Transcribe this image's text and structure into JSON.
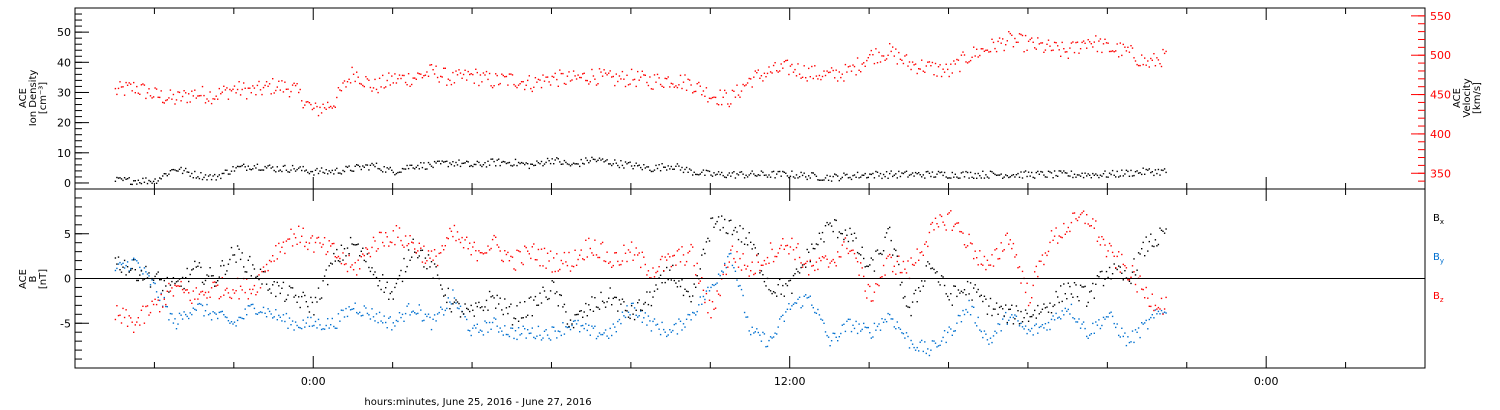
{
  "chart_data": [
    {
      "type": "scatter",
      "panel": "top",
      "ylabel_left": [
        "ACE",
        "Ion Density",
        "[cm⁻³]"
      ],
      "ylabel_right": [
        "ACE",
        "Velocity",
        "[km/s]"
      ],
      "ylim_left": [
        -2,
        58
      ],
      "left_ticks": [
        "0",
        "10",
        "20",
        "30",
        "40",
        "50"
      ],
      "ylim_right": [
        330,
        560
      ],
      "right_ticks": [
        "350",
        "400",
        "450",
        "500",
        "550"
      ],
      "series": [
        {
          "color": "#000000",
          "axis": "left",
          "x": [
            -5,
            -4,
            -3.5,
            -3,
            -2.5,
            -2,
            -1.5,
            -1,
            -0.5,
            0,
            0.5,
            1,
            1.5,
            2,
            2.5,
            3,
            3.5,
            4,
            4.5,
            5,
            5.5,
            6,
            6.5,
            7,
            7.5,
            8,
            8.5,
            9,
            9.5,
            10,
            11,
            12,
            13,
            14,
            15,
            16,
            17,
            18,
            19,
            20,
            21,
            21.5
          ],
          "y": [
            1,
            1,
            5,
            3,
            2,
            5,
            6,
            5,
            5,
            4,
            4,
            5,
            6,
            4,
            6,
            6,
            7,
            6,
            7,
            7,
            6,
            8,
            6,
            8,
            7,
            6,
            5,
            6,
            4,
            3,
            3,
            3,
            2,
            3,
            3,
            3,
            3,
            3,
            3,
            3,
            4,
            4
          ]
        },
        {
          "color": "#ff0000",
          "axis": "right",
          "x": [
            -5,
            -4.5,
            -4,
            -3.5,
            -3,
            -2.5,
            -2,
            -1.5,
            -1,
            -0.5,
            0,
            0.5,
            1,
            1.5,
            2,
            2.5,
            3,
            3.5,
            4,
            4.5,
            5,
            5.5,
            6,
            6.5,
            7,
            7.5,
            8,
            8.5,
            9,
            9.5,
            10,
            10.5,
            11,
            11.5,
            12,
            12.5,
            13,
            13.5,
            14,
            14.5,
            15,
            15.5,
            16,
            16.5,
            17,
            17.5,
            18,
            18.5,
            19,
            19.5,
            20,
            20.5,
            21,
            21.5
          ],
          "y": [
            455,
            460,
            450,
            445,
            452,
            450,
            458,
            455,
            462,
            458,
            430,
            440,
            480,
            460,
            470,
            472,
            480,
            470,
            475,
            468,
            470,
            465,
            472,
            470,
            475,
            470,
            472,
            468,
            470,
            465,
            450,
            445,
            470,
            480,
            485,
            478,
            475,
            480,
            500,
            505,
            490,
            485,
            480,
            500,
            510,
            520,
            515,
            510,
            505,
            520,
            510,
            505,
            490,
            500
          ]
        }
      ]
    },
    {
      "type": "scatter",
      "panel": "bottom",
      "ylabel": [
        "ACE",
        "B",
        "[nT]"
      ],
      "ylim": [
        -10,
        10
      ],
      "ticks": [
        "-5",
        "0",
        "5"
      ],
      "series": [
        {
          "name": "Bx",
          "color": "#000000",
          "x": [
            -5,
            -4.5,
            -4,
            -3.5,
            -3,
            -2.5,
            -2,
            -1.5,
            -1,
            -0.5,
            0,
            0.5,
            1,
            1.5,
            2,
            2.5,
            3,
            3.5,
            4,
            4.5,
            5,
            5.5,
            6,
            6.5,
            7,
            7.5,
            8,
            8.5,
            9,
            9.5,
            10,
            10.5,
            11,
            11.5,
            12,
            12.5,
            13,
            13.5,
            14,
            14.5,
            15,
            15.5,
            16,
            16.5,
            17,
            17.5,
            18,
            18.5,
            19,
            19.5,
            20,
            20.5,
            21,
            21.5
          ],
          "y": [
            2,
            1,
            0,
            -1,
            1,
            0,
            3,
            1,
            -1,
            -2,
            -3,
            2,
            4,
            1,
            -2,
            4,
            1,
            -3,
            -4,
            -2,
            -4,
            -3,
            -1,
            -5,
            -3,
            -2,
            -4,
            -2,
            1,
            -3,
            6,
            6,
            4,
            -1,
            -1,
            3,
            6,
            5,
            1,
            5,
            -4,
            2,
            -2,
            -1,
            -3,
            -4,
            -4,
            -3,
            -1,
            -2,
            1,
            0,
            4,
            5
          ]
        },
        {
          "name": "By",
          "color": "#0070d0",
          "x": [
            -5,
            -4.5,
            -4,
            -3.5,
            -3,
            -2.5,
            -2,
            -1.5,
            -1,
            -0.5,
            0,
            0.5,
            1,
            1.5,
            2,
            2.5,
            3,
            3.5,
            4,
            4.5,
            5,
            5.5,
            6,
            6.5,
            7,
            7.5,
            8,
            8.5,
            9,
            9.5,
            10,
            10.5,
            11,
            11.5,
            12,
            12.5,
            13,
            13.5,
            14,
            14.5,
            15,
            15.5,
            16,
            16.5,
            17,
            17.5,
            18,
            18.5,
            19,
            19.5,
            20,
            20.5,
            21,
            21.5
          ],
          "y": [
            1,
            2,
            -1,
            -5,
            -3,
            -4,
            -5,
            -3,
            -4,
            -5,
            -5,
            -5,
            -3,
            -4,
            -5,
            -3,
            -5,
            -2,
            -6,
            -5,
            -6,
            -6,
            -6,
            -5,
            -6,
            -6,
            -3,
            -5,
            -6,
            -4,
            -1,
            3,
            -6,
            -7,
            -3,
            -2,
            -7,
            -5,
            -6,
            -4,
            -7,
            -8,
            -6,
            -3,
            -7,
            -4,
            -6,
            -5,
            -3,
            -6,
            -4,
            -7,
            -5,
            -3
          ]
        },
        {
          "name": "Bz",
          "color": "#ff0000",
          "x": [
            -5,
            -4.5,
            -4,
            -3.5,
            -3,
            -2.5,
            -2,
            -1.5,
            -1,
            -0.5,
            0,
            0.5,
            1,
            1.5,
            2,
            2.5,
            3,
            3.5,
            4,
            4.5,
            5,
            5.5,
            6,
            6.5,
            7,
            7.5,
            8,
            8.5,
            9,
            9.5,
            10,
            10.5,
            11,
            11.5,
            12,
            12.5,
            13,
            13.5,
            14,
            14.5,
            15,
            15.5,
            16,
            16.5,
            17,
            17.5,
            18,
            18.5,
            19,
            19.5,
            20,
            20.5,
            21,
            21.5
          ],
          "y": [
            -4,
            -5,
            -3,
            -1,
            -2,
            -1,
            -1,
            -1,
            3,
            5,
            4,
            3,
            1,
            4,
            5,
            4,
            2,
            5,
            3,
            4,
            2,
            3,
            2,
            2,
            4,
            2,
            3,
            1,
            2,
            3,
            -4,
            3,
            1,
            3,
            4,
            1,
            2,
            4,
            -2,
            2,
            1,
            5,
            7,
            4,
            1,
            5,
            -2,
            4,
            6,
            7,
            3,
            1,
            -2,
            -3
          ]
        }
      ],
      "legend": [
        {
          "label": "B",
          "sub": "x",
          "color": "#000000"
        },
        {
          "label": "B",
          "sub": "y",
          "color": "#0070d0"
        },
        {
          "label": "B",
          "sub": "z",
          "color": "#ff0000"
        }
      ]
    }
  ],
  "x_axis": {
    "xlim": [
      -6,
      28
    ],
    "ticks": [
      {
        "x": 0,
        "label": "0:00"
      },
      {
        "x": 12,
        "label": "12:00"
      },
      {
        "x": 24,
        "label": "0:00"
      }
    ],
    "xlabel": "hours:minutes, June 25, 2016 - June 27, 2016"
  }
}
